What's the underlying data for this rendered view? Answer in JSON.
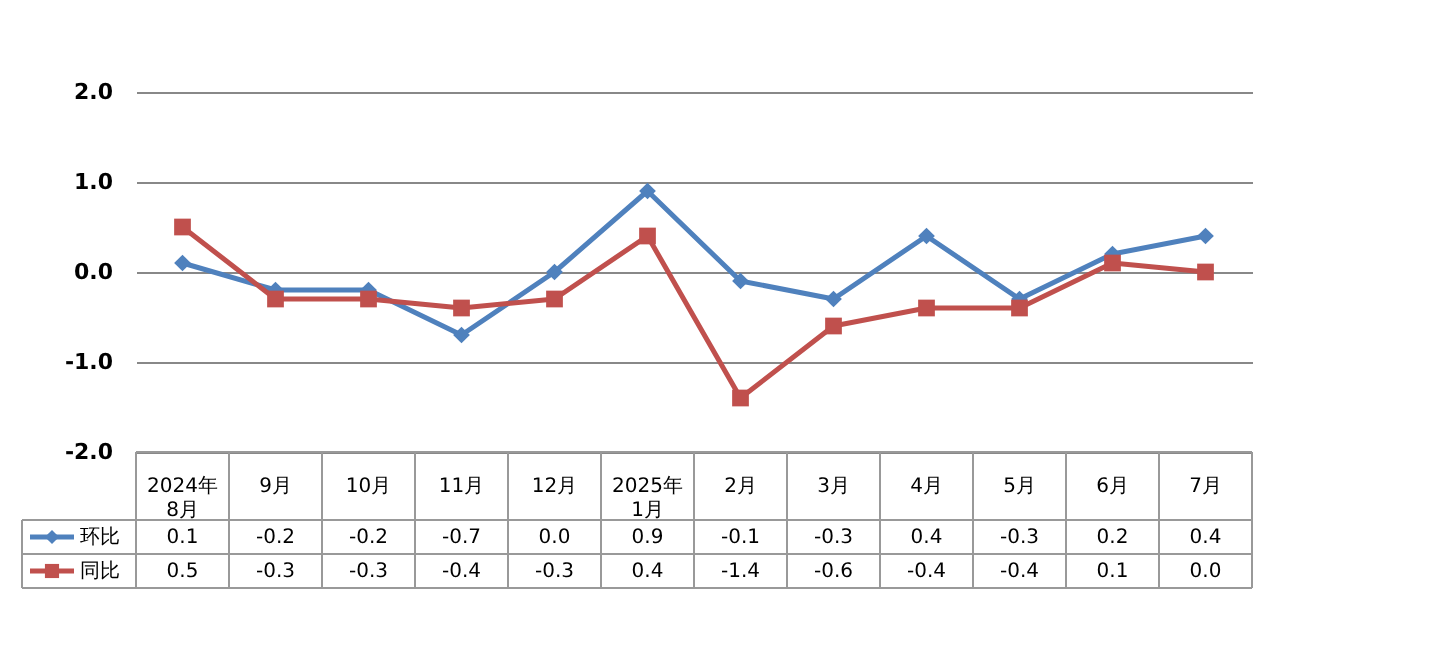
{
  "chart_data": {
    "type": "line",
    "categories": [
      "2024年\n8月",
      "9月",
      "10月",
      "11月",
      "12月",
      "2025年\n1月",
      "2月",
      "3月",
      "4月",
      "5月",
      "6月",
      "7月"
    ],
    "series": [
      {
        "name": "环比",
        "color": "#4f81bd",
        "marker": "diamond",
        "values": [
          0.1,
          -0.2,
          -0.2,
          -0.7,
          0.0,
          0.9,
          -0.1,
          -0.3,
          0.4,
          -0.3,
          0.2,
          0.4
        ],
        "value_labels": [
          "0.1",
          "-0.2",
          "-0.2",
          "-0.7",
          "0.0",
          "0.9",
          "-0.1",
          "-0.3",
          "0.4",
          "-0.3",
          "0.2",
          "0.4"
        ]
      },
      {
        "name": "同比",
        "color": "#c0504d",
        "marker": "square",
        "values": [
          0.5,
          -0.3,
          -0.3,
          -0.4,
          -0.3,
          0.4,
          -1.4,
          -0.6,
          -0.4,
          -0.4,
          0.1,
          0.0
        ],
        "value_labels": [
          "0.5",
          "-0.3",
          "-0.3",
          "-0.4",
          "-0.3",
          "0.4",
          "-1.4",
          "-0.6",
          "-0.4",
          "-0.4",
          "0.1",
          "0.0"
        ]
      }
    ],
    "ylim": [
      -2,
      2
    ],
    "yticks": [
      {
        "value": -2,
        "label": "-2.0"
      },
      {
        "value": -1,
        "label": "-1.0"
      },
      {
        "value": 0,
        "label": "0.0"
      },
      {
        "value": 1,
        "label": "1.0"
      },
      {
        "value": 2,
        "label": "2.0"
      }
    ],
    "grid": "y",
    "legend": "bottom",
    "line_style": "solid"
  }
}
